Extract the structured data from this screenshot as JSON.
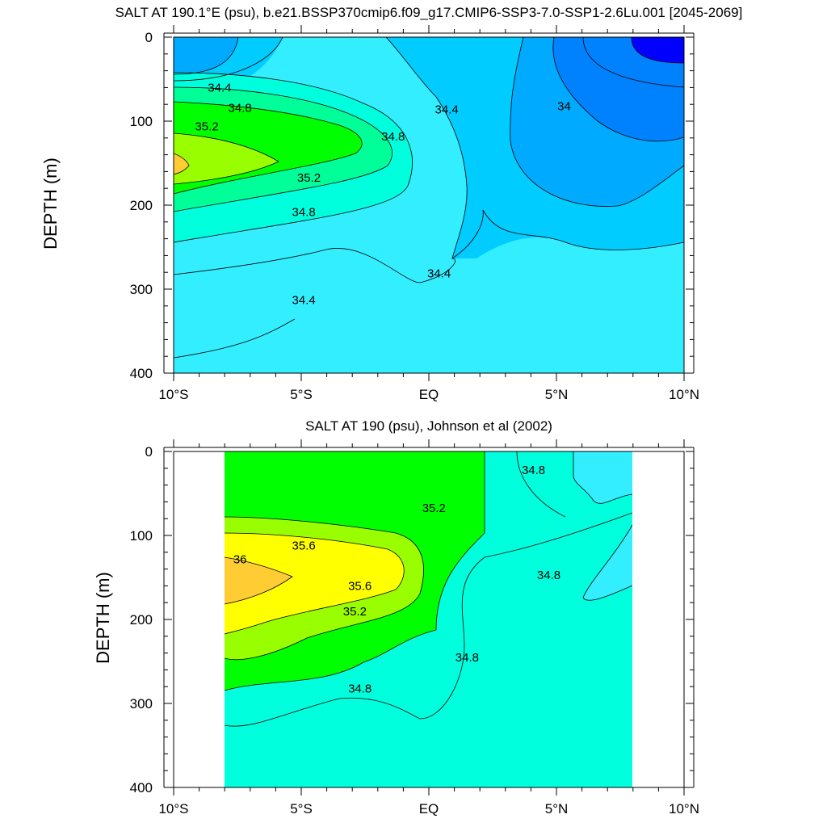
{
  "chart_data": [
    {
      "type": "contour",
      "title": "SALT AT 190.1°E (psu), b.e21.BSSP370cmip6.f09_g17.CMIP6-SSP3-7.0-SSP1-2.6Lu.001 [2045-2069]",
      "ylabel": "DEPTH (m)",
      "xlabel": "",
      "xlim": [
        -10,
        10
      ],
      "ylim": [
        400,
        0
      ],
      "x_ticks": [
        -10,
        -5,
        0,
        5,
        10
      ],
      "x_tick_labels": [
        "10°S",
        "5°S",
        "EQ",
        "5°N",
        "10°N"
      ],
      "y_ticks": [
        0,
        100,
        200,
        300,
        400
      ],
      "y_tick_labels": [
        "0",
        "100",
        "200",
        "300",
        "400"
      ],
      "contour_labels": [
        {
          "text": "34.4",
          "x": -8.2,
          "y": 65
        },
        {
          "text": "34.8",
          "x": -7.4,
          "y": 89
        },
        {
          "text": "35.2",
          "x": -8.7,
          "y": 111
        },
        {
          "text": "35.2",
          "x": -4.7,
          "y": 172
        },
        {
          "text": "34.8",
          "x": -4.9,
          "y": 213
        },
        {
          "text": "34.4",
          "x": -4.9,
          "y": 318
        },
        {
          "text": "34.8",
          "x": -1.4,
          "y": 123
        },
        {
          "text": "34.4",
          "x": 0.7,
          "y": 91
        },
        {
          "text": "34.4",
          "x": 0.4,
          "y": 286
        },
        {
          "text": "34",
          "x": 5.3,
          "y": 87
        }
      ]
    },
    {
      "type": "contour",
      "title": "SALT AT 190 (psu), Johnson et al (2002)",
      "ylabel": "DEPTH (m)",
      "xlabel": "",
      "xlim": [
        -10,
        10
      ],
      "ylim": [
        400,
        0
      ],
      "data_extent_x": [
        -8,
        8
      ],
      "x_ticks": [
        -10,
        -5,
        0,
        5,
        10
      ],
      "x_tick_labels": [
        "10°S",
        "5°S",
        "EQ",
        "5°N",
        "10°N"
      ],
      "y_ticks": [
        0,
        100,
        200,
        300,
        400
      ],
      "y_tick_labels": [
        "0",
        "100",
        "200",
        "300",
        "400"
      ],
      "contour_labels": [
        {
          "text": "35.6",
          "x": -4.9,
          "y": 117
        },
        {
          "text": "36",
          "x": -7.4,
          "y": 133
        },
        {
          "text": "35.6",
          "x": -2.7,
          "y": 165
        },
        {
          "text": "35.2",
          "x": -2.9,
          "y": 195
        },
        {
          "text": "35.2",
          "x": 0.2,
          "y": 72
        },
        {
          "text": "34.8",
          "x": 4.1,
          "y": 27
        },
        {
          "text": "34.8",
          "x": 4.7,
          "y": 152
        },
        {
          "text": "34.8",
          "x": 1.5,
          "y": 250
        },
        {
          "text": "34.8",
          "x": -2.7,
          "y": 287
        }
      ]
    }
  ],
  "colors": {
    "s33_6": "#0000ff",
    "s34_0": "#0082ff",
    "s34_2": "#00aaff",
    "s34_4": "#00ccff",
    "s34_6": "#33eeff",
    "s34_8": "#00ffdd",
    "s35_0": "#00ff99",
    "s35_2": "#00ff00",
    "s35_4": "#99ff00",
    "s35_6": "#ffff00",
    "s35_8": "#ffcc33"
  }
}
